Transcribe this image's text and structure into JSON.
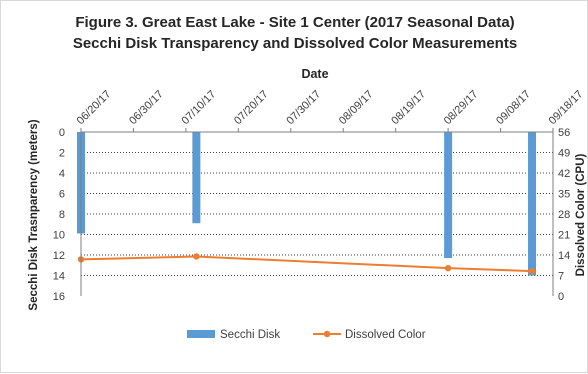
{
  "chart_data": {
    "type": "bar+line",
    "title": "Figure 3. Great East Lake - Site 1 Center (2017 Seasonal Data)",
    "subtitle": "Secchi Disk Transparency and Dissolved Color Measurements",
    "xlabel": "Date",
    "ylabel_left": "Secchi Disk Trasnparency (meters)",
    "ylabel_right": "Dissolved Color (CPU)",
    "x_ticks": [
      "06/20/17",
      "06/30/17",
      "07/10/17",
      "07/20/17",
      "07/30/17",
      "08/09/17",
      "08/19/17",
      "08/29/17",
      "09/08/17",
      "09/18/17"
    ],
    "ylim_left": [
      0,
      16
    ],
    "yticks_left": [
      "0",
      "2",
      "4",
      "6",
      "8",
      "10",
      "12",
      "14",
      "16"
    ],
    "ylim_right": [
      0,
      56
    ],
    "yticks_right": [
      "56",
      "49",
      "42",
      "35",
      "28",
      "21",
      "14",
      "7",
      "0"
    ],
    "left_axis_inverted": true,
    "grid": true,
    "legend_position": "bottom",
    "series": [
      {
        "name": "Secchi Disk",
        "kind": "bar",
        "axis": "left",
        "color": "#5b9bd5",
        "points": [
          {
            "date": "06/20/17",
            "value": 9.9
          },
          {
            "date": "07/12/17",
            "value": 8.9
          },
          {
            "date": "08/29/17",
            "value": 12.3
          },
          {
            "date": "09/14/17",
            "value": 14.0
          }
        ]
      },
      {
        "name": "Dissolved Color",
        "kind": "line",
        "axis": "right",
        "color": "#ed7d31",
        "points": [
          {
            "date": "06/20/17",
            "value": 12.5
          },
          {
            "date": "07/12/17",
            "value": 13.5
          },
          {
            "date": "08/29/17",
            "value": 9.5
          },
          {
            "date": "09/14/17",
            "value": 8.5
          }
        ]
      }
    ]
  }
}
